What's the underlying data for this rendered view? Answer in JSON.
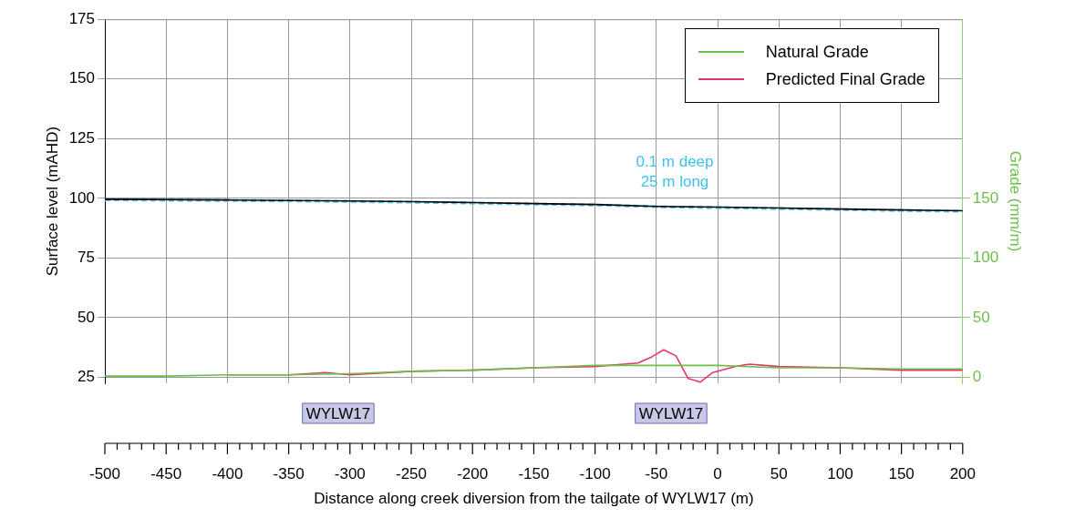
{
  "chart_data": {
    "type": "line",
    "xlabel": "Distance along creek diversion from the tailgate of WYLW17 (m)",
    "ylabel": "Surface level (mAHD)",
    "y2label": "Grade (mm/m)",
    "xlim": [
      -500,
      200
    ],
    "xticks": [
      -500,
      -450,
      -400,
      -350,
      -300,
      -250,
      -200,
      -150,
      -100,
      -50,
      0,
      50,
      100,
      150,
      200
    ],
    "ylim": [
      22.5,
      175
    ],
    "yticks": [
      25,
      50,
      75,
      100,
      125,
      150,
      175
    ],
    "y2lim": [
      -5,
      300
    ],
    "y2ticks": [
      0,
      50,
      100,
      150
    ],
    "grid": true,
    "legend": "top right",
    "series": [
      {
        "color": "#000000",
        "x": [
          -500,
          -400,
          -300,
          -250,
          -200,
          -150,
          -100,
          -50,
          0,
          50,
          100,
          150,
          200
        ],
        "values": [
          99.6,
          99.3,
          98.9,
          98.6,
          98.2,
          97.8,
          97.4,
          96.6,
          96.3,
          95.9,
          95.5,
          95.1,
          94.8
        ]
      },
      {
        "color": "#5bc8e8",
        "line_style": "dashed",
        "x": [
          -500,
          -400,
          -300,
          -250,
          -200,
          -150,
          -100,
          -50,
          -40,
          -25,
          0,
          50,
          100,
          150,
          200
        ],
        "values": [
          99.4,
          99.1,
          98.7,
          98.4,
          98.0,
          97.6,
          97.2,
          96.5,
          96.3,
          96.3,
          96.1,
          95.7,
          95.3,
          94.9,
          94.6
        ]
      },
      {
        "name": "Natural Grade",
        "color": "#6cc04a",
        "axis": "y2",
        "x": [
          -500,
          -450,
          -400,
          -350,
          -300,
          -250,
          -200,
          -150,
          -100,
          -50,
          0,
          50,
          100,
          150,
          200
        ],
        "values": [
          1,
          1,
          2,
          2,
          3,
          5,
          6,
          8,
          10,
          10,
          10,
          8,
          8,
          7,
          7
        ]
      },
      {
        "name": "Predicted Final Grade",
        "color": "#e8336d",
        "axis": "y2",
        "x": [
          -400,
          -350,
          -320,
          -300,
          -250,
          -200,
          -150,
          -100,
          -65,
          -54,
          -44,
          -34,
          -24,
          -14,
          -4,
          14,
          26,
          50,
          100,
          150,
          200
        ],
        "values": [
          2,
          2,
          4,
          2,
          5,
          6,
          8,
          9,
          12,
          17,
          23,
          18,
          -1,
          -4,
          4,
          9,
          11,
          9,
          8,
          6,
          6
        ]
      }
    ],
    "annotations": [
      {
        "text": "0.1 m deep\n25 m long",
        "x": -35,
        "y": 96.6
      },
      "WYLW17",
      "WYLW17"
    ]
  }
}
